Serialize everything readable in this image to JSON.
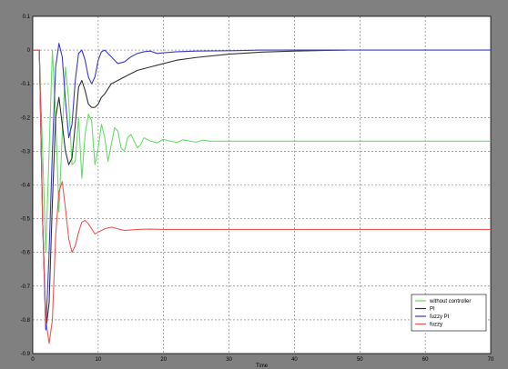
{
  "chart_data": {
    "type": "line",
    "title": "",
    "xlabel": "Time",
    "ylabel": "",
    "xlim": [
      0,
      70
    ],
    "ylim": [
      -0.9,
      0.1
    ],
    "grid": true,
    "legend_position": "bottom-right",
    "x_ticks": [
      "0",
      "10",
      "20",
      "30",
      "40",
      "50",
      "60",
      "70"
    ],
    "y_ticks": [
      "0.1",
      "0",
      "-0.1",
      "-0.2",
      "-0.3",
      "-0.4",
      "-0.5",
      "-0.6",
      "-0.7",
      "-0.8",
      "-0.9"
    ],
    "colors": {
      "figure_background": "#808080",
      "plot_background": "#ffffff",
      "without_controller": "#66dd66",
      "pi": "#333333",
      "fuzzy_pi": "#3a3ad0",
      "fuzzy": "#ee5555"
    },
    "series": [
      {
        "name": "without controller",
        "color": "#66dd66",
        "x": [
          0,
          1,
          1.5,
          2,
          2.5,
          3,
          3.5,
          4,
          4.5,
          5,
          5.5,
          6,
          6.5,
          7,
          7.5,
          8,
          8.5,
          9,
          9.5,
          10,
          10.5,
          11,
          11.5,
          12,
          12.5,
          13,
          13.5,
          14,
          14.5,
          15,
          15.5,
          16,
          16.5,
          17,
          18,
          19,
          20,
          21,
          22,
          23,
          24,
          25,
          26,
          27,
          28,
          30,
          40,
          50,
          60,
          70
        ],
        "y": [
          0,
          0,
          -0.3,
          -0.6,
          -0.3,
          0,
          -0.2,
          -0.48,
          -0.25,
          -0.05,
          -0.15,
          -0.34,
          -0.33,
          -0.2,
          -0.38,
          -0.25,
          -0.19,
          -0.21,
          -0.34,
          -0.29,
          -0.22,
          -0.26,
          -0.33,
          -0.28,
          -0.23,
          -0.24,
          -0.29,
          -0.3,
          -0.26,
          -0.25,
          -0.27,
          -0.29,
          -0.28,
          -0.26,
          -0.27,
          -0.275,
          -0.265,
          -0.27,
          -0.274,
          -0.266,
          -0.27,
          -0.273,
          -0.267,
          -0.27,
          -0.27,
          -0.27,
          -0.27,
          -0.27,
          -0.27,
          -0.27
        ]
      },
      {
        "name": "PI",
        "color": "#333333",
        "x": [
          0,
          1,
          1.5,
          2,
          2.5,
          3,
          3.5,
          4,
          4.5,
          5,
          5.5,
          6,
          6.5,
          7,
          7.5,
          8,
          8.5,
          9,
          9.5,
          10,
          10.5,
          11,
          12,
          13,
          14,
          16,
          18,
          20,
          22,
          25,
          30,
          35,
          40,
          45,
          48
        ],
        "y": [
          0,
          0,
          -0.5,
          -0.83,
          -0.75,
          -0.45,
          -0.2,
          -0.14,
          -0.22,
          -0.3,
          -0.34,
          -0.32,
          -0.22,
          -0.11,
          -0.09,
          -0.12,
          -0.16,
          -0.17,
          -0.17,
          -0.16,
          -0.14,
          -0.13,
          -0.1,
          -0.09,
          -0.08,
          -0.06,
          -0.05,
          -0.04,
          -0.03,
          -0.022,
          -0.012,
          -0.006,
          -0.003,
          -0.001,
          0
        ]
      },
      {
        "name": "fuzzy PI",
        "color": "#3a3ad0",
        "x": [
          0,
          1,
          1.5,
          2,
          2.5,
          3,
          3.5,
          4,
          4.5,
          5,
          5.5,
          6,
          6.5,
          7,
          7.5,
          8,
          8.5,
          9,
          9.5,
          10,
          10.5,
          11,
          12,
          13,
          14,
          15,
          16,
          17,
          18,
          19,
          20,
          22,
          25,
          30,
          35,
          40,
          50,
          60,
          70
        ],
        "y": [
          0,
          0,
          -0.5,
          -0.83,
          -0.6,
          -0.3,
          -0.05,
          0.02,
          -0.02,
          -0.15,
          -0.26,
          -0.22,
          -0.09,
          -0.01,
          0,
          -0.03,
          -0.08,
          -0.1,
          -0.08,
          -0.03,
          -0.005,
          0,
          -0.02,
          -0.04,
          -0.035,
          -0.02,
          -0.01,
          -0.005,
          -0.003,
          -0.01,
          -0.008,
          -0.005,
          -0.003,
          -0.002,
          0,
          0,
          0,
          0,
          0
        ]
      },
      {
        "name": "fuzzy",
        "color": "#ee5555",
        "x": [
          0,
          1,
          1.2,
          1.5,
          2,
          2.5,
          3,
          3.5,
          4,
          4.5,
          5,
          5.5,
          6,
          6.5,
          7,
          7.5,
          8,
          8.5,
          9,
          9.5,
          10,
          11,
          12,
          13,
          14,
          16,
          18,
          20,
          25,
          30,
          40,
          50,
          60,
          70
        ],
        "y": [
          0,
          0,
          -0.2,
          -0.5,
          -0.8,
          -0.87,
          -0.8,
          -0.55,
          -0.42,
          -0.39,
          -0.47,
          -0.56,
          -0.6,
          -0.58,
          -0.54,
          -0.51,
          -0.505,
          -0.515,
          -0.53,
          -0.545,
          -0.54,
          -0.53,
          -0.525,
          -0.53,
          -0.535,
          -0.532,
          -0.531,
          -0.532,
          -0.532,
          -0.532,
          -0.532,
          -0.532,
          -0.532,
          -0.532
        ]
      }
    ]
  }
}
